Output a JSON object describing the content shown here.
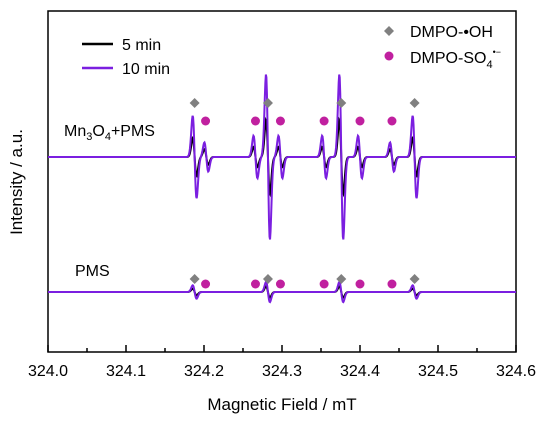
{
  "chart_data": {
    "type": "line",
    "xlabel": "Magnetic Field / mT",
    "ylabel": "Intensity / a.u.",
    "xlim": [
      324.0,
      324.6
    ],
    "x_ticks": [
      "324.0",
      "324.1",
      "324.2",
      "324.3",
      "324.4",
      "324.5",
      "324.6"
    ],
    "y_ticks_labeled": false,
    "grid": false,
    "legend_lines": {
      "placement": "top-left",
      "entries": [
        {
          "label": "5 min",
          "color": "#000000"
        },
        {
          "label": "10 min",
          "color": "#7B1FE0"
        }
      ]
    },
    "legend_markers": {
      "placement": "top-right",
      "entries": [
        {
          "label": "DMPO-•OH",
          "marker": "diamond",
          "color": "#808080"
        },
        {
          "label_main": "DMPO-SO",
          "label_sub": "4",
          "label_sup": "•−",
          "marker": "circle",
          "color": "#C0209F"
        }
      ]
    },
    "panels": [
      {
        "label_parts": [
          "Mn",
          "3",
          "O",
          "4",
          "+PMS"
        ],
        "dmpo_oh_peaks_x": [
          324.188,
          324.282,
          324.376,
          324.47
        ],
        "dmpo_so4_peaks_x": [
          324.202,
          324.266,
          324.298,
          324.354,
          324.4,
          324.441
        ],
        "series": [
          {
            "name": "5 min",
            "color": "#000000",
            "lines": [
              {
                "center": 324.188,
                "amp": 0.17
              },
              {
                "center": 324.282,
                "amp": 0.33
              },
              {
                "center": 324.376,
                "amp": 0.33
              },
              {
                "center": 324.47,
                "amp": 0.17
              },
              {
                "center": 324.203,
                "amp": 0.07
              },
              {
                "center": 324.266,
                "amp": 0.09
              },
              {
                "center": 324.298,
                "amp": 0.09
              },
              {
                "center": 324.354,
                "amp": 0.09
              },
              {
                "center": 324.4,
                "amp": 0.09
              },
              {
                "center": 324.441,
                "amp": 0.07
              }
            ]
          },
          {
            "name": "10 min",
            "color": "#7B1FE0",
            "lines": [
              {
                "center": 324.188,
                "amp": 0.37
              },
              {
                "center": 324.282,
                "amp": 0.74
              },
              {
                "center": 324.376,
                "amp": 0.74
              },
              {
                "center": 324.47,
                "amp": 0.37
              },
              {
                "center": 324.203,
                "amp": 0.13
              },
              {
                "center": 324.266,
                "amp": 0.19
              },
              {
                "center": 324.298,
                "amp": 0.19
              },
              {
                "center": 324.354,
                "amp": 0.19
              },
              {
                "center": 324.4,
                "amp": 0.19
              },
              {
                "center": 324.441,
                "amp": 0.13
              }
            ]
          }
        ]
      },
      {
        "label": "PMS",
        "dmpo_oh_peaks_x": [
          324.188,
          324.282,
          324.376,
          324.47
        ],
        "dmpo_so4_peaks_x": [
          324.202,
          324.266,
          324.298,
          324.354,
          324.4,
          324.441
        ],
        "series": [
          {
            "name": "5 min",
            "color": "#000000",
            "lines": [
              {
                "center": 324.188,
                "amp": 0.03
              },
              {
                "center": 324.282,
                "amp": 0.05
              },
              {
                "center": 324.376,
                "amp": 0.05
              },
              {
                "center": 324.47,
                "amp": 0.03
              }
            ]
          },
          {
            "name": "10 min",
            "color": "#7B1FE0",
            "lines": [
              {
                "center": 324.188,
                "amp": 0.06
              },
              {
                "center": 324.282,
                "amp": 0.09
              },
              {
                "center": 324.376,
                "amp": 0.09
              },
              {
                "center": 324.47,
                "amp": 0.06
              }
            ]
          }
        ]
      }
    ]
  }
}
